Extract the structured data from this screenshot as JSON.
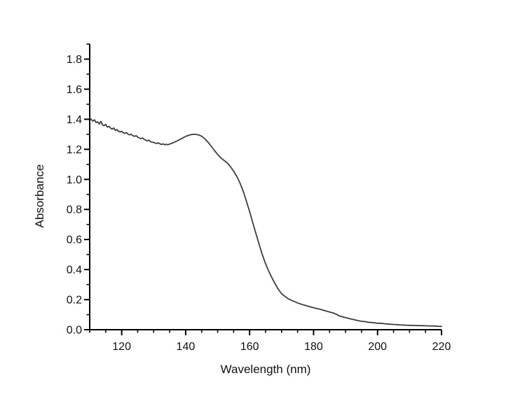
{
  "figure": {
    "background_color": "#ffffff",
    "axis_color": "#000000",
    "curve_color": "#3d3d3d",
    "label_color": "#111111"
  },
  "chart_data": {
    "type": "line",
    "title": "",
    "xlabel": "Wavelength (nm)",
    "ylabel": "Absorbance",
    "xlim": [
      110,
      220
    ],
    "ylim": [
      0,
      1.9
    ],
    "grid": false,
    "legend_position": "none",
    "x_major_ticks": [
      120,
      140,
      160,
      180,
      200,
      220
    ],
    "x_tick_labels": [
      "120",
      "140",
      "160",
      "180",
      "200",
      "220"
    ],
    "x_minor_step": 5,
    "y_major_ticks": [
      0.0,
      0.2,
      0.4,
      0.6,
      0.8,
      1.0,
      1.2,
      1.4,
      1.6,
      1.8
    ],
    "y_tick_labels": [
      "0.0",
      "0.2",
      "0.4",
      "0.6",
      "0.8",
      "1.0",
      "1.2",
      "1.4",
      "1.6",
      "1.8"
    ],
    "y_minor_step": 0.1,
    "series": [
      {
        "name": "absorbance-spectrum",
        "x": [
          110,
          110.5,
          111,
          111.5,
          112,
          112.5,
          113,
          113.5,
          114,
          114.5,
          115,
          115.5,
          116,
          116.5,
          117,
          117.5,
          118,
          118.5,
          119,
          119.5,
          120,
          120.5,
          121,
          121.5,
          122,
          122.5,
          123,
          123.5,
          124,
          124.5,
          125,
          125.5,
          126,
          126.5,
          127,
          127.5,
          128,
          128.5,
          129,
          129.5,
          130,
          130.5,
          131,
          131.5,
          132,
          132.5,
          133,
          133.5,
          134,
          134.5,
          135,
          136,
          137,
          138,
          139,
          140,
          141,
          142,
          143,
          144,
          145,
          146,
          147,
          148,
          149,
          150,
          151,
          152,
          153,
          154,
          155,
          156,
          157,
          158,
          159,
          160,
          161,
          162,
          163,
          164,
          165,
          166,
          167,
          168,
          169,
          170,
          171,
          172,
          173,
          174,
          175,
          176,
          177,
          178,
          179,
          180,
          181,
          182,
          183,
          184,
          185,
          186,
          187,
          188,
          189,
          190,
          191,
          192,
          193,
          194,
          195,
          196,
          197,
          198,
          199,
          200,
          201,
          202,
          203,
          204,
          205,
          206,
          207,
          208,
          209,
          210,
          211,
          212,
          213,
          214,
          215,
          216,
          217,
          218,
          219,
          220
        ],
        "y": [
          1.41,
          1.398,
          1.388,
          1.396,
          1.378,
          1.383,
          1.368,
          1.386,
          1.362,
          1.357,
          1.366,
          1.348,
          1.352,
          1.342,
          1.334,
          1.342,
          1.326,
          1.332,
          1.32,
          1.316,
          1.32,
          1.31,
          1.306,
          1.312,
          1.3,
          1.296,
          1.3,
          1.291,
          1.286,
          1.291,
          1.281,
          1.276,
          1.271,
          1.276,
          1.266,
          1.261,
          1.256,
          1.261,
          1.251,
          1.247,
          1.246,
          1.241,
          1.239,
          1.243,
          1.236,
          1.233,
          1.236,
          1.231,
          1.233,
          1.231,
          1.235,
          1.243,
          1.252,
          1.263,
          1.274,
          1.286,
          1.294,
          1.299,
          1.3,
          1.296,
          1.287,
          1.27,
          1.247,
          1.22,
          1.192,
          1.166,
          1.143,
          1.126,
          1.11,
          1.085,
          1.055,
          1.02,
          0.975,
          0.92,
          0.855,
          0.785,
          0.712,
          0.638,
          0.566,
          0.498,
          0.438,
          0.388,
          0.344,
          0.304,
          0.268,
          0.24,
          0.222,
          0.207,
          0.196,
          0.187,
          0.178,
          0.171,
          0.164,
          0.158,
          0.152,
          0.146,
          0.141,
          0.136,
          0.13,
          0.124,
          0.118,
          0.112,
          0.104,
          0.092,
          0.086,
          0.08,
          0.075,
          0.07,
          0.065,
          0.06,
          0.056,
          0.054,
          0.05,
          0.048,
          0.046,
          0.043,
          0.043,
          0.04,
          0.038,
          0.037,
          0.035,
          0.034,
          0.032,
          0.031,
          0.03,
          0.029,
          0.029,
          0.028,
          0.027,
          0.027,
          0.026,
          0.025,
          0.025,
          0.024,
          0.023,
          0.022
        ]
      }
    ]
  }
}
